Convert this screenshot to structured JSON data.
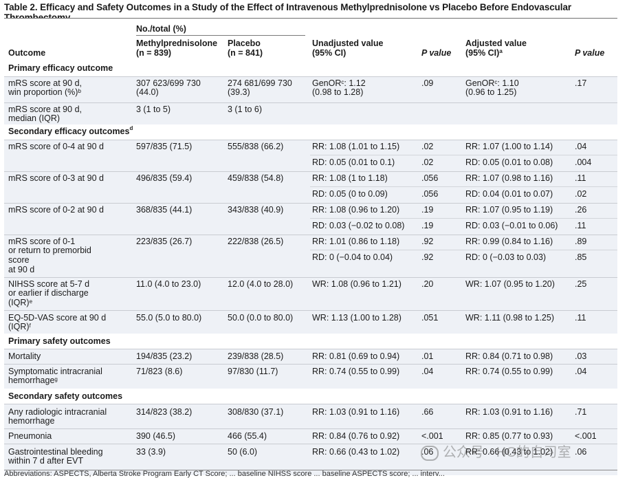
{
  "title": "Table 2. Efficacy and Safety Outcomes in a Study of the Effect of Intravenous Methylprednisolone vs Placebo Before Endovascular Thrombectomy",
  "header": {
    "group": "No./total (%)",
    "outcome": "Outcome",
    "methyl": "Methylprednisolone",
    "methyl_n": "(n = 839)",
    "placebo": "Placebo",
    "placebo_n": "(n = 841)",
    "unadj": "Unadjusted value",
    "unadj_ci": "(95% CI)",
    "p1": "P value",
    "adj": "Adjusted value",
    "adj_ci": "(95% CI)",
    "adj_sup": "a",
    "p2": "P value"
  },
  "sections": {
    "s1": "Primary efficacy outcome",
    "s2": "Secondary efficacy outcomes",
    "s2_sup": "d",
    "s3": "Primary safety outcomes",
    "s4": "Secondary safety outcomes"
  },
  "rows": {
    "r1": {
      "o1": "mRS score at 90 d,",
      "o2": "win proportion (%)",
      "sup": "b",
      "m1": "307 623/699 730",
      "m2": "(44.0)",
      "p1": "274 681/699 730",
      "p2": "(39.3)",
      "u1": "GenOR",
      "usup": "c",
      "u1b": ": 1.12",
      "u2": "(0.98 to 1.28)",
      "pv1": ".09",
      "a1": "GenOR",
      "asup": "c",
      "a1b": ": 1.10",
      "a2": "(0.96 to 1.25)",
      "pv2": ".17"
    },
    "r2": {
      "o1": "mRS score at 90 d,",
      "o2": "median (IQR)",
      "m1": "3 (1 to 5)",
      "p1": "3 (1 to 6)"
    },
    "r3": {
      "o1": "mRS score of 0-4 at 90 d",
      "m1": "597/835 (71.5)",
      "p1": "555/838 (66.2)",
      "u1": "RR: 1.08 (1.01 to 1.15)",
      "pv1": ".02",
      "a1": "RR: 1.07 (1.00 to 1.14)",
      "pv2": ".04",
      "u2": "RD: 0.05 (0.01 to 0.1)",
      "pv1b": ".02",
      "a2": "RD: 0.05 (0.01 to 0.08)",
      "pv2b": ".004"
    },
    "r4": {
      "o1": "mRS score of 0-3 at 90 d",
      "m1": "496/835 (59.4)",
      "p1": "459/838 (54.8)",
      "u1": "RR: 1.08 (1 to 1.18)",
      "pv1": ".056",
      "a1": "RR: 1.07 (0.98 to 1.16)",
      "pv2": ".11",
      "u2": "RD: 0.05 (0 to 0.09)",
      "pv1b": ".056",
      "a2": "RD: 0.04 (0.01 to 0.07)",
      "pv2b": ".02"
    },
    "r5": {
      "o1": "mRS score of 0-2 at 90 d",
      "m1": "368/835 (44.1)",
      "p1": "343/838 (40.9)",
      "u1": "RR: 1.08 (0.96 to 1.20)",
      "pv1": ".19",
      "a1": "RR: 1.07 (0.95 to 1.19)",
      "pv2": ".26",
      "u2": "RD: 0.03 (−0.02 to 0.08)",
      "pv1b": ".19",
      "a2": "RD: 0.03 (−0.01 to 0.06)",
      "pv2b": ".11"
    },
    "r6": {
      "o1": "mRS score of 0-1",
      "o2": "or return to premorbid",
      "o3": "score",
      "o4": "at 90 d",
      "m1": "223/835 (26.7)",
      "p1": "222/838 (26.5)",
      "u1": "RR: 1.01 (0.86 to 1.18)",
      "pv1": ".92",
      "a1": "RR: 0.99 (0.84 to 1.16)",
      "pv2": ".89",
      "u2": "RD: 0 (−0.04 to 0.04)",
      "pv1b": ".92",
      "a2": "RD: 0 (−0.03 to 0.03)",
      "pv2b": ".85"
    },
    "r7": {
      "o1": "NIHSS score at 5-7 d",
      "o2": "or earlier if discharge",
      "o3": "(IQR)",
      "sup": "e",
      "m1": "11.0 (4.0 to 23.0)",
      "p1": "12.0 (4.0 to 28.0)",
      "u1": "WR: 1.08 (0.96 to 1.21)",
      "pv1": ".20",
      "a1": "WR: 1.07 (0.95 to 1.20)",
      "pv2": ".25"
    },
    "r8": {
      "o1": "EQ-5D-VAS score at 90 d",
      "o2": "(IQR)",
      "sup": "f",
      "m1": "55.0 (5.0 to 80.0)",
      "p1": "50.0 (0.0 to 80.0)",
      "u1": "WR: 1.13 (1.00 to 1.28)",
      "pv1": ".051",
      "a1": "WR: 1.11 (0.98 to 1.25)",
      "pv2": ".11"
    },
    "r9": {
      "o1": "Mortality",
      "m1": "194/835 (23.2)",
      "p1": "239/838 (28.5)",
      "u1": "RR: 0.81 (0.69 to 0.94)",
      "pv1": ".01",
      "a1": "RR: 0.84 (0.71 to 0.98)",
      "pv2": ".03"
    },
    "r10": {
      "o1": "Symptomatic intracranial",
      "o2": "hemorrhage",
      "sup": "g",
      "m1": "71/823 (8.6)",
      "p1": "97/830 (11.7)",
      "u1": "RR: 0.74 (0.55 to 0.99)",
      "pv1": ".04",
      "a1": "RR: 0.74 (0.55 to 0.99)",
      "pv2": ".04"
    },
    "r11": {
      "o1": "Any radiologic intracranial",
      "o2": "hemorrhage",
      "m1": "314/823 (38.2)",
      "p1": "308/830 (37.1)",
      "u1": "RR: 1.03 (0.91 to 1.16)",
      "pv1": ".66",
      "a1": "RR: 1.03 (0.91 to 1.16)",
      "pv2": ".71"
    },
    "r12": {
      "o1": "Pneumonia",
      "m1": "390 (46.5)",
      "p1": "466 (55.4)",
      "u1": "RR: 0.84 (0.76 to 0.92)",
      "pv1": "<.001",
      "a1": "RR: 0.85 (0.77 to 0.93)",
      "pv2": "<.001"
    },
    "r13": {
      "o1": "Gastrointestinal bleeding",
      "o2": "within 7 d after EVT",
      "m1": "33 (3.9)",
      "p1": "50 (6.0)",
      "u1": "RR: 0.66 (0.43 to 1.02)",
      "pv1": ".06",
      "a1": "RR: 0.66 (0.43 to 1.02)",
      "pv2": ".06"
    }
  },
  "footer": "Abbreviations: ASPECTS, Alberta Stroke Program Early CT Score; ... baseline NIHSS score ... baseline ASPECTS score; ... interv...",
  "watermark": "公众号 · HC的自习室",
  "colors": {
    "row_bg": "#eef1f6",
    "section_bg": "#ffffff"
  }
}
